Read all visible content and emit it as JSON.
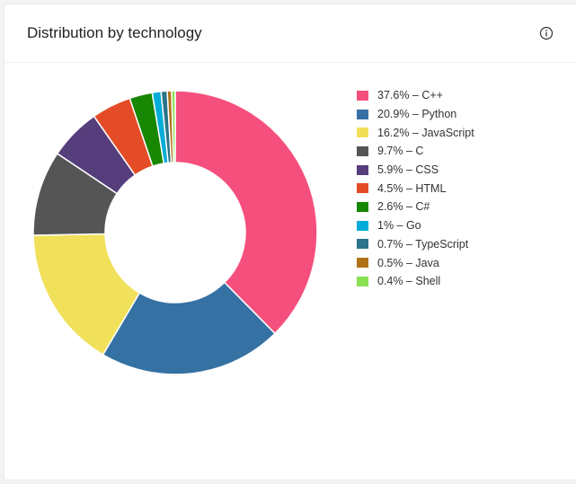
{
  "header": {
    "title": "Distribution by technology",
    "info_icon": "info-circle-icon"
  },
  "chart_data": {
    "type": "pie",
    "style": "donut",
    "title": "Distribution by technology",
    "legend_position": "right",
    "slices": [
      {
        "label": "C++",
        "value": 37.6,
        "legend": "37.6% – C++",
        "color": "#f54f7d"
      },
      {
        "label": "Python",
        "value": 20.9,
        "legend": "20.9% – Python",
        "color": "#3571a3"
      },
      {
        "label": "JavaScript",
        "value": 16.2,
        "legend": "16.2% – JavaScript",
        "color": "#f1e05a"
      },
      {
        "label": "C",
        "value": 9.7,
        "legend": "9.7% – C",
        "color": "#555555"
      },
      {
        "label": "CSS",
        "value": 5.9,
        "legend": "5.9% – CSS",
        "color": "#563d7c"
      },
      {
        "label": "HTML",
        "value": 4.5,
        "legend": "4.5% – HTML",
        "color": "#e34c26"
      },
      {
        "label": "C#",
        "value": 2.6,
        "legend": "2.6% – C#",
        "color": "#178600"
      },
      {
        "label": "Go",
        "value": 1.0,
        "legend": "1% – Go",
        "color": "#00add8"
      },
      {
        "label": "TypeScript",
        "value": 0.7,
        "legend": "0.7% – TypeScript",
        "color": "#2b7489"
      },
      {
        "label": "Java",
        "value": 0.5,
        "legend": "0.5% – Java",
        "color": "#b07219"
      },
      {
        "label": "Shell",
        "value": 0.4,
        "legend": "0.4% – Shell",
        "color": "#89e051"
      }
    ]
  }
}
